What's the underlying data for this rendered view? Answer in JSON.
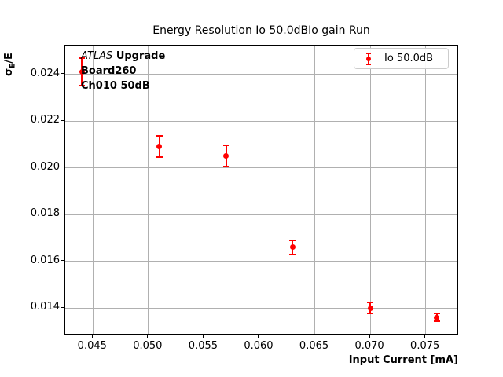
{
  "chart_data": {
    "type": "scatter",
    "title": "Energy Resolution Io 50.0dBIo gain Run",
    "xlabel": "Input Current [mA]",
    "ylabel": "σE/E",
    "ylabel_parts": {
      "sigma": "σ",
      "sub": "E",
      "rest": "/E"
    },
    "xlim": [
      0.0425,
      0.078
    ],
    "ylim": [
      0.01283,
      0.02523
    ],
    "xticks": [
      0.045,
      0.05,
      0.055,
      0.06,
      0.065,
      0.07,
      0.075
    ],
    "xtick_labels": [
      "0.045",
      "0.050",
      "0.055",
      "0.060",
      "0.065",
      "0.070",
      "0.075"
    ],
    "yticks": [
      0.014,
      0.016,
      0.018,
      0.02,
      0.022,
      0.024
    ],
    "ytick_labels": [
      "0.014",
      "0.016",
      "0.018",
      "0.020",
      "0.022",
      "0.024"
    ],
    "grid": true,
    "grid_color": "#b0b0b0",
    "marker_color": "#ff0000",
    "series": [
      {
        "name": "Io 50.0dB",
        "color": "#ff0000",
        "marker": "filled-circle-with-errorbars",
        "points": [
          {
            "x": 0.044,
            "y": 0.0241,
            "yerr": 0.0006
          },
          {
            "x": 0.051,
            "y": 0.0209,
            "yerr": 0.00045
          },
          {
            "x": 0.057,
            "y": 0.0205,
            "yerr": 0.00045
          },
          {
            "x": 0.063,
            "y": 0.0166,
            "yerr": 0.0003
          },
          {
            "x": 0.07,
            "y": 0.014,
            "yerr": 0.00023
          },
          {
            "x": 0.076,
            "y": 0.0136,
            "yerr": 0.00016
          }
        ]
      }
    ],
    "legend": {
      "label": "Io 50.0dB",
      "position": "upper right"
    },
    "annotation": {
      "experiment": "ATLAS",
      "tag": "Upgrade",
      "line2": "Board260",
      "line3": "Ch010 50dB"
    }
  }
}
